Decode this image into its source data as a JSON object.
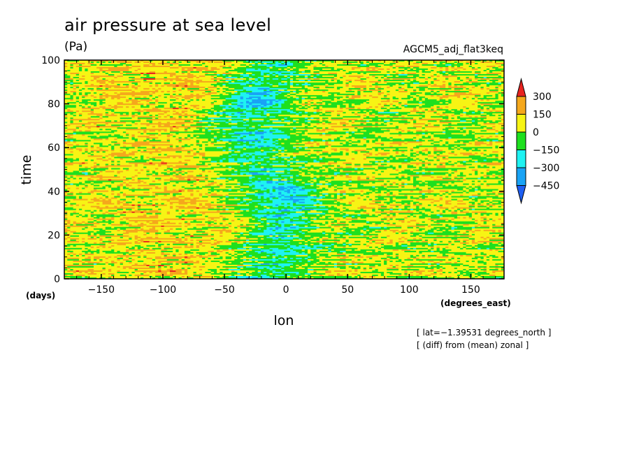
{
  "chart_data": {
    "type": "heatmap",
    "title": "air pressure at sea level",
    "units": "(Pa)",
    "experiment": "AGCM5_adj_flat3keq",
    "xlabel": "lon",
    "ylabel": "time",
    "x_units": "(degrees_east)",
    "y_units": "(days)",
    "xlim": [
      -180,
      177
    ],
    "ylim": [
      0,
      100
    ],
    "x_ticks": [
      -150,
      -100,
      -50,
      0,
      50,
      100,
      150
    ],
    "x_tick_labels": [
      "−150",
      "−100",
      "−50",
      "0",
      "50",
      "100",
      "150"
    ],
    "y_ticks": [
      0,
      20,
      40,
      60,
      80,
      100
    ],
    "y_tick_labels": [
      "0",
      "20",
      "40",
      "60",
      "80",
      "100"
    ],
    "colorbar": {
      "levels": [
        300,
        150,
        0,
        -150,
        -300,
        -450
      ],
      "level_labels": [
        "300",
        "150",
        "0",
        "−150",
        "−300",
        "−450"
      ],
      "colors": [
        "#e8231f",
        "#f5a81c",
        "#f7f414",
        "#1ee01e",
        "#1ef2f2",
        "#19a3f5",
        "#1f5ff2"
      ]
    },
    "annotations": [
      "[ lat=−1.39531 degrees_north ]",
      "[ (diff) from (mean) zonal ]"
    ],
    "grid": false,
    "field_description": "zonal anomaly, mostly yellow/green; negative (green-cyan-blue) band near lon -30 to 50, strongest near time 80 and 40"
  }
}
